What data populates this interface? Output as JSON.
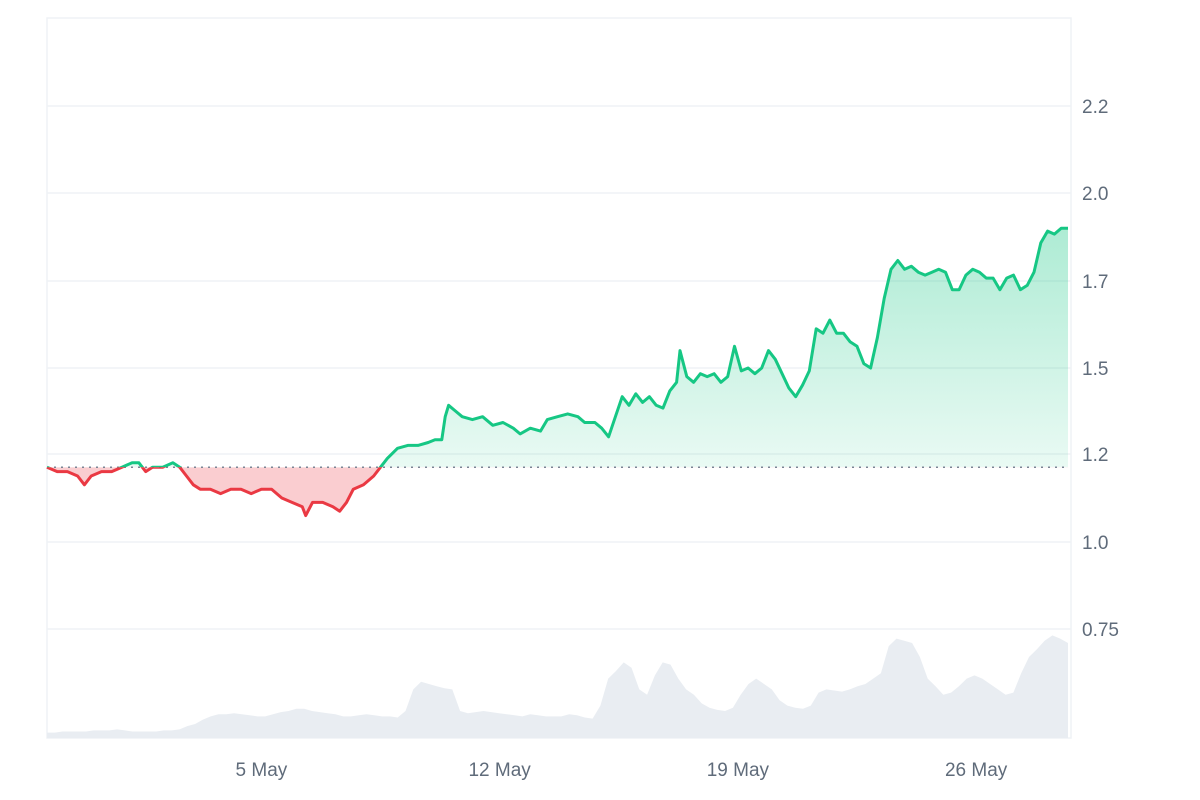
{
  "colors": {
    "up_line": "#16c784",
    "up_fill": "#16c784",
    "down_line": "#ea3943",
    "down_fill": "#ea3943",
    "volume": "#e9edf2",
    "grid": "#eff2f5",
    "baseline_dots": "#7a8494",
    "axis_text": "#5f6b7a"
  },
  "chart_data": {
    "type": "area",
    "x_ticks": [
      "5 May",
      "12 May",
      "19 May",
      "26 May"
    ],
    "y_ticks": [
      "2.2",
      "2.0",
      "1.7",
      "1.5",
      "1.2",
      "1.0",
      "0.75"
    ],
    "y_tick_values": [
      2.2,
      2.0,
      1.7,
      1.5,
      1.2,
      1.0,
      0.75
    ],
    "ylim": [
      0.75,
      2.3
    ],
    "baseline": 1.17,
    "x_range_days": [
      0,
      30
    ],
    "grid": true,
    "series": [
      {
        "values": [
          [
            0.0,
            1.17
          ],
          [
            0.3,
            1.16
          ],
          [
            0.6,
            1.16
          ],
          [
            0.9,
            1.15
          ],
          [
            1.1,
            1.13
          ],
          [
            1.3,
            1.15
          ],
          [
            1.6,
            1.16
          ],
          [
            1.9,
            1.16
          ],
          [
            2.2,
            1.17
          ],
          [
            2.5,
            1.18
          ],
          [
            2.7,
            1.18
          ],
          [
            2.9,
            1.16
          ],
          [
            3.1,
            1.17
          ],
          [
            3.4,
            1.17
          ],
          [
            3.7,
            1.18
          ],
          [
            3.9,
            1.17
          ],
          [
            4.1,
            1.15
          ],
          [
            4.3,
            1.13
          ],
          [
            4.5,
            1.12
          ],
          [
            4.8,
            1.12
          ],
          [
            5.1,
            1.11
          ],
          [
            5.4,
            1.12
          ],
          [
            5.7,
            1.12
          ],
          [
            6.0,
            1.11
          ],
          [
            6.3,
            1.12
          ],
          [
            6.6,
            1.12
          ],
          [
            6.9,
            1.1
          ],
          [
            7.2,
            1.09
          ],
          [
            7.5,
            1.08
          ],
          [
            7.6,
            1.06
          ],
          [
            7.8,
            1.09
          ],
          [
            8.1,
            1.09
          ],
          [
            8.4,
            1.08
          ],
          [
            8.6,
            1.07
          ],
          [
            8.8,
            1.09
          ],
          [
            9.0,
            1.12
          ],
          [
            9.3,
            1.13
          ],
          [
            9.6,
            1.15
          ],
          [
            9.8,
            1.17
          ],
          [
            10.0,
            1.19
          ],
          [
            10.3,
            1.22
          ],
          [
            10.6,
            1.23
          ],
          [
            10.9,
            1.23
          ],
          [
            11.2,
            1.24
          ],
          [
            11.4,
            1.25
          ],
          [
            11.6,
            1.25
          ],
          [
            11.7,
            1.33
          ],
          [
            11.8,
            1.37
          ],
          [
            12.0,
            1.35
          ],
          [
            12.2,
            1.33
          ],
          [
            12.5,
            1.32
          ],
          [
            12.8,
            1.33
          ],
          [
            13.1,
            1.3
          ],
          [
            13.4,
            1.31
          ],
          [
            13.7,
            1.29
          ],
          [
            13.9,
            1.27
          ],
          [
            14.2,
            1.29
          ],
          [
            14.5,
            1.28
          ],
          [
            14.7,
            1.32
          ],
          [
            15.0,
            1.33
          ],
          [
            15.3,
            1.34
          ],
          [
            15.6,
            1.33
          ],
          [
            15.8,
            1.31
          ],
          [
            16.1,
            1.31
          ],
          [
            16.3,
            1.29
          ],
          [
            16.5,
            1.26
          ],
          [
            16.7,
            1.33
          ],
          [
            16.9,
            1.4
          ],
          [
            17.1,
            1.37
          ],
          [
            17.3,
            1.41
          ],
          [
            17.5,
            1.38
          ],
          [
            17.7,
            1.4
          ],
          [
            17.9,
            1.37
          ],
          [
            18.1,
            1.36
          ],
          [
            18.3,
            1.42
          ],
          [
            18.5,
            1.45
          ],
          [
            18.6,
            1.54
          ],
          [
            18.8,
            1.47
          ],
          [
            19.0,
            1.45
          ],
          [
            19.2,
            1.48
          ],
          [
            19.4,
            1.47
          ],
          [
            19.6,
            1.48
          ],
          [
            19.8,
            1.45
          ],
          [
            20.0,
            1.47
          ],
          [
            20.2,
            1.55
          ],
          [
            20.4,
            1.49
          ],
          [
            20.6,
            1.5
          ],
          [
            20.8,
            1.48
          ],
          [
            21.0,
            1.5
          ],
          [
            21.2,
            1.54
          ],
          [
            21.4,
            1.52
          ],
          [
            21.6,
            1.48
          ],
          [
            21.8,
            1.43
          ],
          [
            22.0,
            1.4
          ],
          [
            22.2,
            1.44
          ],
          [
            22.4,
            1.49
          ],
          [
            22.6,
            1.59
          ],
          [
            22.8,
            1.58
          ],
          [
            23.0,
            1.61
          ],
          [
            23.2,
            1.58
          ],
          [
            23.4,
            1.58
          ],
          [
            23.6,
            1.56
          ],
          [
            23.8,
            1.55
          ],
          [
            24.0,
            1.51
          ],
          [
            24.2,
            1.5
          ],
          [
            24.4,
            1.57
          ],
          [
            24.6,
            1.66
          ],
          [
            24.8,
            1.74
          ],
          [
            25.0,
            1.77
          ],
          [
            25.2,
            1.74
          ],
          [
            25.4,
            1.75
          ],
          [
            25.6,
            1.73
          ],
          [
            25.8,
            1.72
          ],
          [
            26.0,
            1.73
          ],
          [
            26.2,
            1.74
          ],
          [
            26.4,
            1.73
          ],
          [
            26.6,
            1.68
          ],
          [
            26.8,
            1.68
          ],
          [
            27.0,
            1.72
          ],
          [
            27.2,
            1.74
          ],
          [
            27.4,
            1.73
          ],
          [
            27.6,
            1.71
          ],
          [
            27.8,
            1.71
          ],
          [
            28.0,
            1.68
          ],
          [
            28.2,
            1.71
          ],
          [
            28.4,
            1.72
          ],
          [
            28.6,
            1.68
          ],
          [
            28.8,
            1.69
          ],
          [
            29.0,
            1.73
          ],
          [
            29.2,
            1.83
          ],
          [
            29.4,
            1.87
          ],
          [
            29.6,
            1.86
          ],
          [
            29.8,
            1.88
          ],
          [
            30.0,
            1.88
          ]
        ]
      }
    ],
    "price_path_days": [
      0,
      0.3,
      0.6,
      0.9,
      1.1,
      1.3,
      1.6,
      1.9,
      2.2,
      2.5,
      2.7,
      2.9,
      3.1,
      3.4,
      3.7,
      3.9,
      4.1,
      4.3,
      4.5,
      4.8,
      5.1,
      5.4,
      5.7,
      6.0,
      6.3,
      6.6,
      6.9,
      7.2,
      7.5,
      7.6,
      7.8,
      8.1,
      8.4,
      8.6,
      8.8,
      9.0,
      9.3,
      9.6,
      9.8,
      10.0,
      10.3,
      10.6,
      10.9,
      11.2,
      11.4,
      11.6,
      11.7,
      11.8,
      12.0,
      12.2,
      12.5,
      12.8,
      13.1,
      13.4,
      13.7,
      13.9,
      14.2,
      14.5,
      14.7,
      15.0,
      15.3,
      15.6,
      15.8,
      16.1,
      16.3,
      16.5,
      16.7,
      16.9,
      17.1,
      17.3,
      17.5,
      17.7,
      17.9,
      18.1,
      18.3,
      18.5,
      18.6,
      18.8,
      19.0,
      19.2,
      19.4,
      19.6,
      19.8,
      20.0,
      20.2,
      20.4,
      20.6,
      20.8,
      21.0,
      21.2,
      21.4,
      21.6,
      21.8,
      22.0,
      22.2,
      22.4,
      22.6,
      22.8,
      23.0,
      23.2,
      23.4,
      23.6,
      23.8,
      24.0,
      24.2,
      24.4,
      24.6,
      24.8,
      25.0,
      25.2,
      25.4,
      25.6,
      25.8,
      26.0,
      26.2,
      26.4,
      26.6,
      26.8,
      27.0,
      27.2,
      27.4,
      27.6,
      27.8,
      28.0,
      28.2,
      28.4,
      28.6,
      28.8,
      29.0,
      29.2,
      29.4,
      29.6,
      29.8,
      30.0
    ],
    "price_values": [
      1.17,
      1.16,
      1.16,
      1.15,
      1.13,
      1.15,
      1.16,
      1.16,
      1.17,
      1.18,
      1.18,
      1.16,
      1.17,
      1.17,
      1.18,
      1.17,
      1.15,
      1.13,
      1.12,
      1.12,
      1.11,
      1.12,
      1.12,
      1.11,
      1.12,
      1.12,
      1.1,
      1.09,
      1.08,
      1.06,
      1.09,
      1.09,
      1.08,
      1.07,
      1.09,
      1.12,
      1.13,
      1.15,
      1.17,
      1.19,
      1.22,
      1.23,
      1.23,
      1.24,
      1.25,
      1.25,
      1.33,
      1.37,
      1.35,
      1.33,
      1.32,
      1.33,
      1.3,
      1.31,
      1.29,
      1.27,
      1.29,
      1.28,
      1.32,
      1.33,
      1.34,
      1.33,
      1.31,
      1.31,
      1.29,
      1.26,
      1.33,
      1.4,
      1.37,
      1.41,
      1.38,
      1.4,
      1.37,
      1.36,
      1.42,
      1.45,
      1.54,
      1.47,
      1.45,
      1.48,
      1.47,
      1.48,
      1.45,
      1.47,
      1.55,
      1.49,
      1.5,
      1.48,
      1.5,
      1.54,
      1.52,
      1.48,
      1.43,
      1.4,
      1.44,
      1.49,
      1.59,
      1.58,
      1.61,
      1.58,
      1.58,
      1.56,
      1.55,
      1.51,
      1.5,
      1.57,
      1.66,
      1.74,
      1.77,
      1.74,
      1.75,
      1.73,
      1.72,
      1.73,
      1.74,
      1.73,
      1.68,
      1.68,
      1.72,
      1.74,
      1.73,
      1.71,
      1.71,
      1.68,
      1.71,
      1.72,
      1.68,
      1.69,
      1.73,
      1.83,
      1.87,
      1.86,
      1.88,
      1.88
    ],
    "volume_values": [
      0.05,
      0.05,
      0.06,
      0.06,
      0.06,
      0.06,
      0.07,
      0.07,
      0.07,
      0.08,
      0.07,
      0.06,
      0.06,
      0.06,
      0.06,
      0.07,
      0.07,
      0.08,
      0.11,
      0.13,
      0.17,
      0.2,
      0.22,
      0.22,
      0.23,
      0.22,
      0.21,
      0.2,
      0.2,
      0.22,
      0.24,
      0.25,
      0.27,
      0.27,
      0.25,
      0.24,
      0.23,
      0.22,
      0.2,
      0.2,
      0.21,
      0.22,
      0.21,
      0.2,
      0.2,
      0.19,
      0.25,
      0.45,
      0.52,
      0.5,
      0.48,
      0.46,
      0.45,
      0.25,
      0.23,
      0.24,
      0.25,
      0.24,
      0.23,
      0.22,
      0.21,
      0.2,
      0.22,
      0.21,
      0.2,
      0.2,
      0.2,
      0.22,
      0.21,
      0.19,
      0.18,
      0.3,
      0.55,
      0.62,
      0.7,
      0.65,
      0.45,
      0.4,
      0.58,
      0.7,
      0.68,
      0.55,
      0.45,
      0.4,
      0.32,
      0.28,
      0.26,
      0.25,
      0.28,
      0.4,
      0.5,
      0.55,
      0.5,
      0.45,
      0.35,
      0.3,
      0.28,
      0.27,
      0.3,
      0.42,
      0.45,
      0.44,
      0.43,
      0.45,
      0.48,
      0.5,
      0.55,
      0.6,
      0.85,
      0.92,
      0.9,
      0.88,
      0.75,
      0.55,
      0.48,
      0.4,
      0.42,
      0.48,
      0.55,
      0.58,
      0.55,
      0.5,
      0.45,
      0.4,
      0.42,
      0.6,
      0.75,
      0.82,
      0.9,
      0.95,
      0.92,
      0.88
    ]
  }
}
